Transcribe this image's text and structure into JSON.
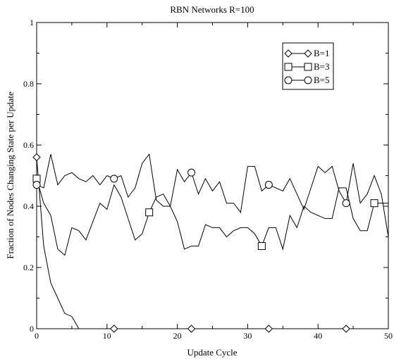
{
  "chart_data": {
    "type": "line",
    "title": "RBN Networks R=100",
    "xlabel": "Update Cycle",
    "ylabel": "Fraction of Nodes Changing State per Update",
    "xlim": [
      0,
      50
    ],
    "ylim": [
      0,
      1
    ],
    "xticks": [
      "0",
      "10",
      "20",
      "30",
      "40",
      "50"
    ],
    "yticks": [
      "0",
      "0.2",
      "0.4",
      "0.6",
      "0.8",
      "1"
    ],
    "grid": false,
    "legend_position": "top-right",
    "series": [
      {
        "name": "B=1",
        "marker": "diamond",
        "x": [
          0,
          1,
          2,
          3,
          4,
          5,
          6,
          7,
          8,
          9,
          10,
          11,
          12,
          13,
          14,
          15,
          16,
          17,
          18,
          19,
          20,
          21,
          22,
          23,
          24,
          25,
          26,
          27,
          28,
          29,
          30,
          31,
          32,
          33,
          34,
          35,
          36,
          37,
          38,
          39,
          40,
          41,
          42,
          43,
          44,
          45,
          46,
          47,
          48,
          49,
          50
        ],
        "values": [
          0.56,
          0.27,
          0.15,
          0.1,
          0.05,
          0.04,
          0.0,
          0.0,
          0.0,
          0.0,
          0.0,
          0.0,
          0.0,
          0.0,
          0.0,
          0.0,
          0.0,
          0.0,
          0.0,
          0.0,
          0.0,
          0.0,
          0.0,
          0.0,
          0.0,
          0.0,
          0.0,
          0.0,
          0.0,
          0.0,
          0.0,
          0.0,
          0.0,
          0.0,
          0.0,
          0.0,
          0.0,
          0.0,
          0.0,
          0.0,
          0.0,
          0.0,
          0.0,
          0.0,
          0.0,
          0.0,
          0.0,
          0.0,
          0.0,
          0.0,
          0.0
        ],
        "marker_x": [
          0,
          11,
          22,
          33,
          44
        ]
      },
      {
        "name": "B=3",
        "marker": "square",
        "x": [
          0,
          1,
          2,
          3,
          4,
          5,
          6,
          7,
          8,
          9,
          10,
          11,
          12,
          13,
          14,
          15,
          16,
          17,
          18,
          19,
          20,
          21,
          22,
          23,
          24,
          25,
          26,
          27,
          28,
          29,
          30,
          31,
          32,
          33,
          34,
          35,
          36,
          37,
          38,
          39,
          40,
          41,
          42,
          43,
          44,
          45,
          46,
          47,
          48,
          49,
          50
        ],
        "values": [
          0.49,
          0.41,
          0.37,
          0.26,
          0.24,
          0.33,
          0.32,
          0.29,
          0.35,
          0.41,
          0.39,
          0.47,
          0.43,
          0.36,
          0.29,
          0.31,
          0.38,
          0.43,
          0.44,
          0.4,
          0.35,
          0.26,
          0.27,
          0.27,
          0.34,
          0.33,
          0.33,
          0.3,
          0.32,
          0.33,
          0.33,
          0.31,
          0.27,
          0.33,
          0.33,
          0.26,
          0.37,
          0.33,
          0.4,
          0.38,
          0.37,
          0.36,
          0.36,
          0.46,
          0.46,
          0.36,
          0.32,
          0.32,
          0.41,
          0.41,
          0.41
        ],
        "marker_x": [
          0,
          16,
          32,
          48
        ]
      },
      {
        "name": "B=5",
        "marker": "circle",
        "x": [
          0,
          1,
          2,
          3,
          4,
          5,
          6,
          7,
          8,
          9,
          10,
          11,
          12,
          13,
          14,
          15,
          16,
          17,
          18,
          19,
          20,
          21,
          22,
          23,
          24,
          25,
          26,
          27,
          28,
          29,
          30,
          31,
          32,
          33,
          34,
          35,
          36,
          37,
          38,
          39,
          40,
          41,
          42,
          43,
          44,
          45,
          46,
          47,
          48,
          49,
          50
        ],
        "values": [
          0.47,
          0.46,
          0.57,
          0.47,
          0.5,
          0.51,
          0.49,
          0.48,
          0.5,
          0.47,
          0.5,
          0.49,
          0.5,
          0.43,
          0.46,
          0.54,
          0.57,
          0.42,
          0.4,
          0.4,
          0.52,
          0.48,
          0.51,
          0.44,
          0.49,
          0.45,
          0.48,
          0.41,
          0.41,
          0.38,
          0.53,
          0.53,
          0.45,
          0.47,
          0.46,
          0.45,
          0.49,
          0.44,
          0.39,
          0.46,
          0.53,
          0.51,
          0.53,
          0.45,
          0.41,
          0.54,
          0.41,
          0.44,
          0.5,
          0.44,
          0.3
        ],
        "marker_x": [
          0,
          11,
          22,
          33,
          44
        ]
      }
    ]
  }
}
